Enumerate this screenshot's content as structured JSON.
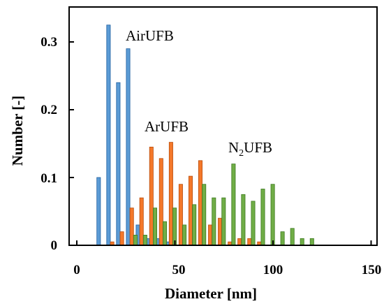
{
  "chart_data": {
    "type": "bar",
    "xlabel": "Diameter  [nm]",
    "ylabel": "Number  [-]",
    "xlim": [
      0,
      150
    ],
    "ylim": [
      0,
      0.35
    ],
    "x_ticks": [
      "0",
      "50",
      "100",
      "150"
    ],
    "y_ticks": [
      "0",
      "0.1",
      "0.2",
      "0.3"
    ],
    "grid": false,
    "legend": "none",
    "series": [
      {
        "name": "AirUFB",
        "color": "#5b9bd5",
        "edge_color": "#1f5fa0",
        "points": [
          {
            "x": 13,
            "y": 0.1
          },
          {
            "x": 18,
            "y": 0.325
          },
          {
            "x": 23,
            "y": 0.24
          },
          {
            "x": 28,
            "y": 0.29
          },
          {
            "x": 33,
            "y": 0.03
          },
          {
            "x": 38,
            "y": 0.01
          },
          {
            "x": 43,
            "y": 0.01
          },
          {
            "x": 48,
            "y": 0.005
          }
        ]
      },
      {
        "name": "ArUFB",
        "color": "#f4782a",
        "edge_color": "#b84d0c",
        "points": [
          {
            "x": 18,
            "y": 0.005
          },
          {
            "x": 23,
            "y": 0.02
          },
          {
            "x": 28,
            "y": 0.055
          },
          {
            "x": 33,
            "y": 0.07
          },
          {
            "x": 38,
            "y": 0.145
          },
          {
            "x": 43,
            "y": 0.128
          },
          {
            "x": 48,
            "y": 0.152
          },
          {
            "x": 53,
            "y": 0.09
          },
          {
            "x": 58,
            "y": 0.102
          },
          {
            "x": 63,
            "y": 0.125
          },
          {
            "x": 68,
            "y": 0.03
          },
          {
            "x": 73,
            "y": 0.04
          },
          {
            "x": 78,
            "y": 0.005
          },
          {
            "x": 83,
            "y": 0.01
          },
          {
            "x": 88,
            "y": 0.01
          },
          {
            "x": 93,
            "y": 0.005
          }
        ]
      },
      {
        "name": "N2UFB",
        "name_parts": {
          "base": "N",
          "subscript": "2",
          "rest": "UFB"
        },
        "color": "#70ad47",
        "edge_color": "#3d7a1f",
        "points": [
          {
            "x": 28,
            "y": 0.015
          },
          {
            "x": 33,
            "y": 0.015
          },
          {
            "x": 38,
            "y": 0.055
          },
          {
            "x": 43,
            "y": 0.035
          },
          {
            "x": 48,
            "y": 0.055
          },
          {
            "x": 53,
            "y": 0.03
          },
          {
            "x": 58,
            "y": 0.06
          },
          {
            "x": 63,
            "y": 0.09
          },
          {
            "x": 68,
            "y": 0.07
          },
          {
            "x": 73,
            "y": 0.07
          },
          {
            "x": 78,
            "y": 0.12
          },
          {
            "x": 83,
            "y": 0.075
          },
          {
            "x": 88,
            "y": 0.065
          },
          {
            "x": 93,
            "y": 0.083
          },
          {
            "x": 98,
            "y": 0.09
          },
          {
            "x": 103,
            "y": 0.02
          },
          {
            "x": 108,
            "y": 0.025
          },
          {
            "x": 113,
            "y": 0.01
          },
          {
            "x": 118,
            "y": 0.01
          }
        ]
      }
    ]
  }
}
